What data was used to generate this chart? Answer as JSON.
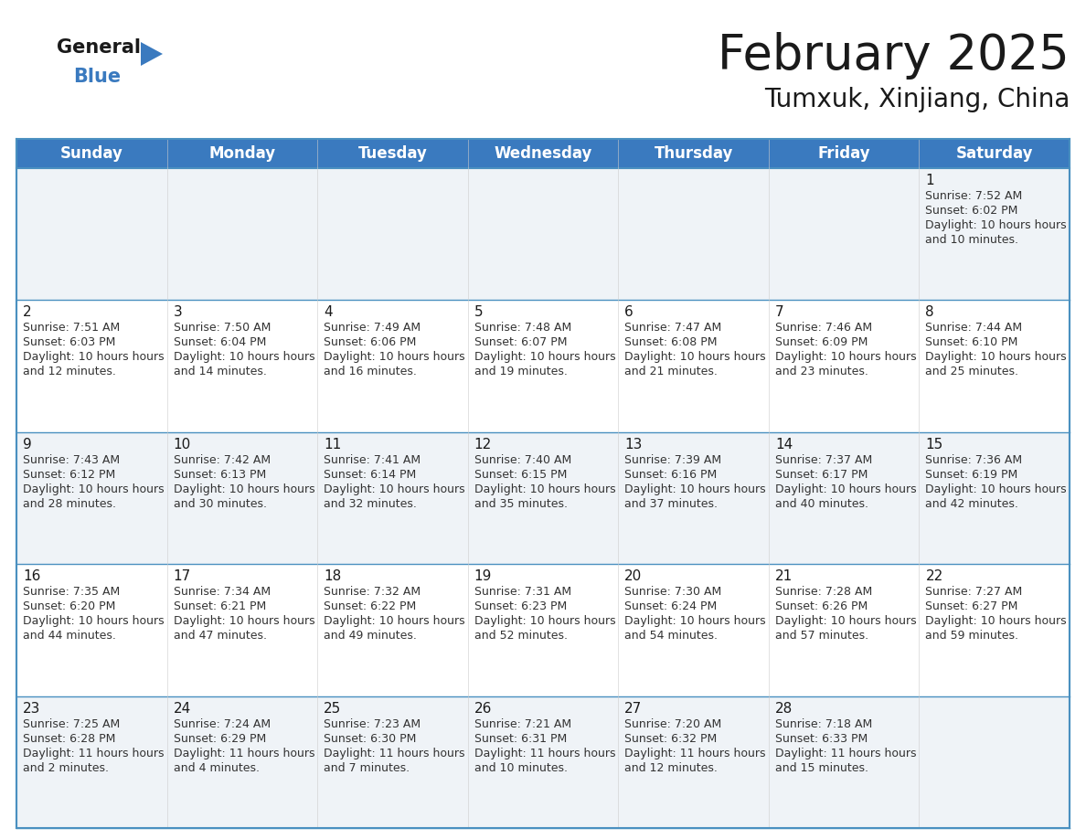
{
  "title": "February 2025",
  "subtitle": "Tumxuk, Xinjiang, China",
  "header_color": "#3a7abf",
  "header_text_color": "#ffffff",
  "row_colors": [
    "#eff3f7",
    "#ffffff"
  ],
  "border_color": "#4a90c0",
  "cell_border_color": "#c0c0c0",
  "day_headers": [
    "Sunday",
    "Monday",
    "Tuesday",
    "Wednesday",
    "Thursday",
    "Friday",
    "Saturday"
  ],
  "title_fontsize": 38,
  "subtitle_fontsize": 20,
  "header_fontsize": 12,
  "day_num_fontsize": 11,
  "info_fontsize": 9,
  "days": [
    {
      "date": 1,
      "col": 6,
      "row": 0,
      "sunrise": "7:52 AM",
      "sunset": "6:02 PM",
      "daylight": "10 hours and 10 minutes."
    },
    {
      "date": 2,
      "col": 0,
      "row": 1,
      "sunrise": "7:51 AM",
      "sunset": "6:03 PM",
      "daylight": "10 hours and 12 minutes."
    },
    {
      "date": 3,
      "col": 1,
      "row": 1,
      "sunrise": "7:50 AM",
      "sunset": "6:04 PM",
      "daylight": "10 hours and 14 minutes."
    },
    {
      "date": 4,
      "col": 2,
      "row": 1,
      "sunrise": "7:49 AM",
      "sunset": "6:06 PM",
      "daylight": "10 hours and 16 minutes."
    },
    {
      "date": 5,
      "col": 3,
      "row": 1,
      "sunrise": "7:48 AM",
      "sunset": "6:07 PM",
      "daylight": "10 hours and 19 minutes."
    },
    {
      "date": 6,
      "col": 4,
      "row": 1,
      "sunrise": "7:47 AM",
      "sunset": "6:08 PM",
      "daylight": "10 hours and 21 minutes."
    },
    {
      "date": 7,
      "col": 5,
      "row": 1,
      "sunrise": "7:46 AM",
      "sunset": "6:09 PM",
      "daylight": "10 hours and 23 minutes."
    },
    {
      "date": 8,
      "col": 6,
      "row": 1,
      "sunrise": "7:44 AM",
      "sunset": "6:10 PM",
      "daylight": "10 hours and 25 minutes."
    },
    {
      "date": 9,
      "col": 0,
      "row": 2,
      "sunrise": "7:43 AM",
      "sunset": "6:12 PM",
      "daylight": "10 hours and 28 minutes."
    },
    {
      "date": 10,
      "col": 1,
      "row": 2,
      "sunrise": "7:42 AM",
      "sunset": "6:13 PM",
      "daylight": "10 hours and 30 minutes."
    },
    {
      "date": 11,
      "col": 2,
      "row": 2,
      "sunrise": "7:41 AM",
      "sunset": "6:14 PM",
      "daylight": "10 hours and 32 minutes."
    },
    {
      "date": 12,
      "col": 3,
      "row": 2,
      "sunrise": "7:40 AM",
      "sunset": "6:15 PM",
      "daylight": "10 hours and 35 minutes."
    },
    {
      "date": 13,
      "col": 4,
      "row": 2,
      "sunrise": "7:39 AM",
      "sunset": "6:16 PM",
      "daylight": "10 hours and 37 minutes."
    },
    {
      "date": 14,
      "col": 5,
      "row": 2,
      "sunrise": "7:37 AM",
      "sunset": "6:17 PM",
      "daylight": "10 hours and 40 minutes."
    },
    {
      "date": 15,
      "col": 6,
      "row": 2,
      "sunrise": "7:36 AM",
      "sunset": "6:19 PM",
      "daylight": "10 hours and 42 minutes."
    },
    {
      "date": 16,
      "col": 0,
      "row": 3,
      "sunrise": "7:35 AM",
      "sunset": "6:20 PM",
      "daylight": "10 hours and 44 minutes."
    },
    {
      "date": 17,
      "col": 1,
      "row": 3,
      "sunrise": "7:34 AM",
      "sunset": "6:21 PM",
      "daylight": "10 hours and 47 minutes."
    },
    {
      "date": 18,
      "col": 2,
      "row": 3,
      "sunrise": "7:32 AM",
      "sunset": "6:22 PM",
      "daylight": "10 hours and 49 minutes."
    },
    {
      "date": 19,
      "col": 3,
      "row": 3,
      "sunrise": "7:31 AM",
      "sunset": "6:23 PM",
      "daylight": "10 hours and 52 minutes."
    },
    {
      "date": 20,
      "col": 4,
      "row": 3,
      "sunrise": "7:30 AM",
      "sunset": "6:24 PM",
      "daylight": "10 hours and 54 minutes."
    },
    {
      "date": 21,
      "col": 5,
      "row": 3,
      "sunrise": "7:28 AM",
      "sunset": "6:26 PM",
      "daylight": "10 hours and 57 minutes."
    },
    {
      "date": 22,
      "col": 6,
      "row": 3,
      "sunrise": "7:27 AM",
      "sunset": "6:27 PM",
      "daylight": "10 hours and 59 minutes."
    },
    {
      "date": 23,
      "col": 0,
      "row": 4,
      "sunrise": "7:25 AM",
      "sunset": "6:28 PM",
      "daylight": "11 hours and 2 minutes."
    },
    {
      "date": 24,
      "col": 1,
      "row": 4,
      "sunrise": "7:24 AM",
      "sunset": "6:29 PM",
      "daylight": "11 hours and 4 minutes."
    },
    {
      "date": 25,
      "col": 2,
      "row": 4,
      "sunrise": "7:23 AM",
      "sunset": "6:30 PM",
      "daylight": "11 hours and 7 minutes."
    },
    {
      "date": 26,
      "col": 3,
      "row": 4,
      "sunrise": "7:21 AM",
      "sunset": "6:31 PM",
      "daylight": "11 hours and 10 minutes."
    },
    {
      "date": 27,
      "col": 4,
      "row": 4,
      "sunrise": "7:20 AM",
      "sunset": "6:32 PM",
      "daylight": "11 hours and 12 minutes."
    },
    {
      "date": 28,
      "col": 5,
      "row": 4,
      "sunrise": "7:18 AM",
      "sunset": "6:33 PM",
      "daylight": "11 hours and 15 minutes."
    }
  ]
}
